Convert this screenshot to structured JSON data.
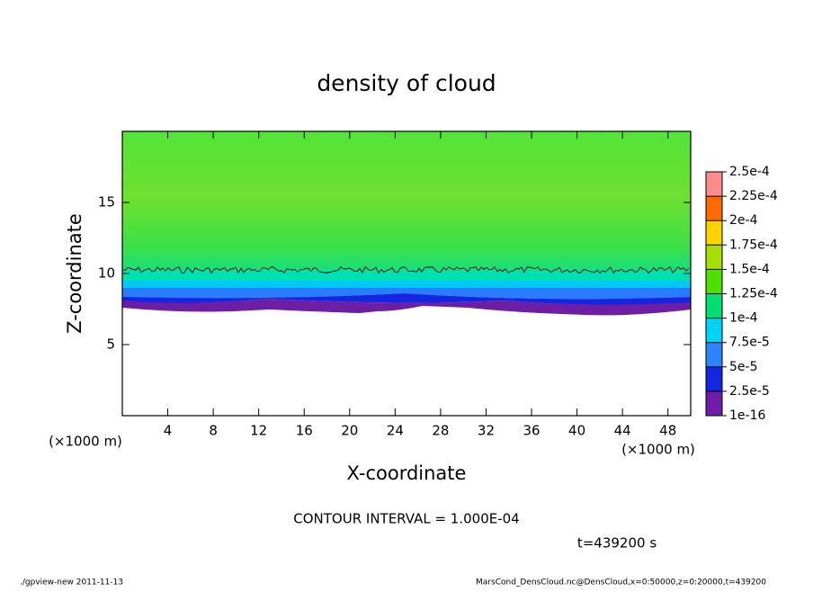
{
  "chart_data": {
    "type": "contour",
    "title": "density of cloud",
    "x_label": "X-coordinate",
    "y_label": "Z-coordinate",
    "x_unit": "(×1000 m)",
    "y_unit": "(×1000 m)",
    "xlim": [
      0,
      50
    ],
    "xticks": [
      4,
      8,
      12,
      16,
      20,
      24,
      28,
      32,
      36,
      40,
      44,
      48
    ],
    "ylim": [
      0,
      20
    ],
    "yticks": [
      5,
      10,
      15
    ],
    "colorbar": {
      "levels": [
        {
          "value": 1e-16,
          "label": "1e-16"
        },
        {
          "value": 2.5e-05,
          "label": "2.5e-5"
        },
        {
          "value": 5e-05,
          "label": "5e-5"
        },
        {
          "value": 7.5e-05,
          "label": "7.5e-5"
        },
        {
          "value": 0.0001,
          "label": "1e-4"
        },
        {
          "value": 0.000125,
          "label": "1.25e-4"
        },
        {
          "value": 0.00015,
          "label": "1.5e-4"
        },
        {
          "value": 0.000175,
          "label": "1.75e-4"
        },
        {
          "value": 0.0002,
          "label": "2e-4"
        },
        {
          "value": 0.000225,
          "label": "2.25e-4"
        },
        {
          "value": 0.00025,
          "label": "2.5e-4"
        }
      ],
      "colors": [
        "#6e1ea4",
        "#1426e0",
        "#2c84ff",
        "#00d4f4",
        "#00e070",
        "#4ee000",
        "#a6e000",
        "#ffd400",
        "#ff6a00",
        "#ff8c8c"
      ]
    },
    "contour_interval": "CONTOUR INTERVAL = 1.000E-04",
    "time_label": "t=439200 s",
    "footer_left": "./gpview-new  2011-11-13",
    "footer_right": "MarsCond_DensCloud.nc@DensCloud,x=0:50000,z=0:20000,t=439200"
  }
}
